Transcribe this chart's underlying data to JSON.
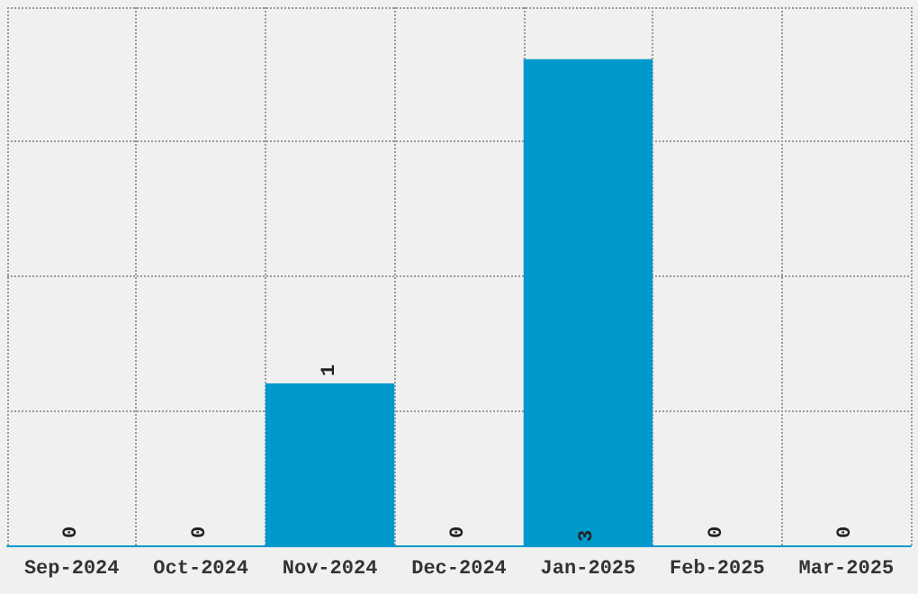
{
  "chart_data": {
    "type": "bar",
    "categories": [
      "Sep-2024",
      "Oct-2024",
      "Nov-2024",
      "Dec-2024",
      "Jan-2025",
      "Feb-2025",
      "Mar-2025"
    ],
    "values": [
      0,
      0,
      1,
      0,
      3,
      0,
      0
    ],
    "color": "#0099cc",
    "data_labels": true,
    "ylim": [
      0,
      3.32
    ],
    "yticks": [
      {
        "value": 0,
        "label": null
      },
      {
        "value": 0.83,
        "label": null
      },
      {
        "value": 1.66,
        "label": null
      },
      {
        "value": 2.49,
        "label": null
      },
      {
        "value": 3.32,
        "label": null
      }
    ],
    "tick_labels": "x",
    "grid": true
  }
}
